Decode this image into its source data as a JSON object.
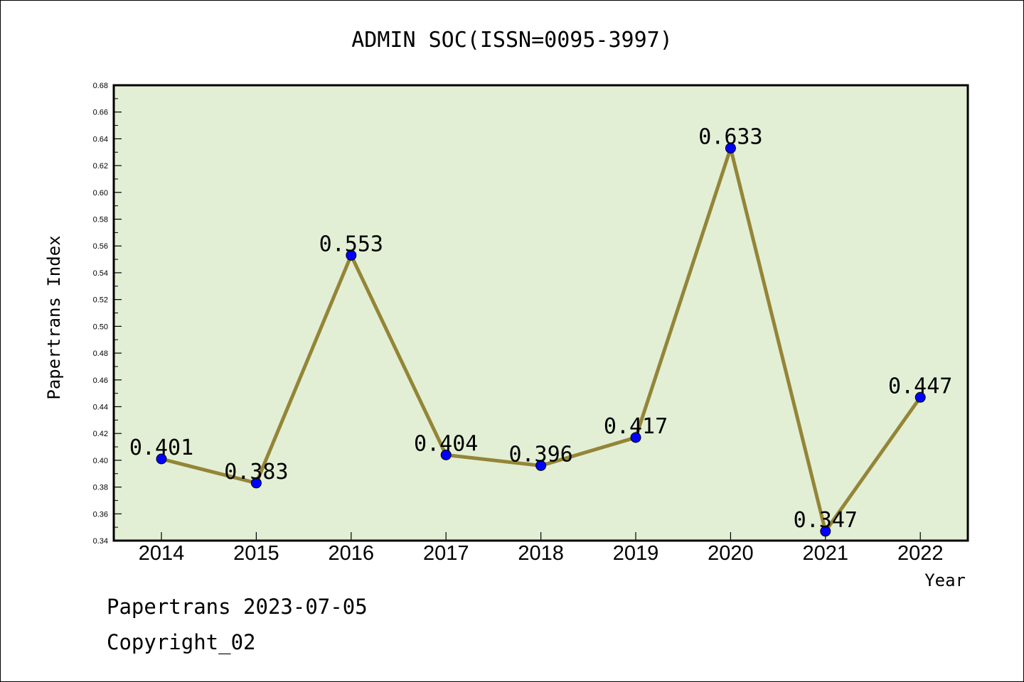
{
  "chart_data": {
    "type": "line",
    "title": "ADMIN SOC(ISSN=0095-3997)",
    "xlabel": "Year",
    "ylabel": "Papertrans Index",
    "categories": [
      "2014",
      "2015",
      "2016",
      "2017",
      "2018",
      "2019",
      "2020",
      "2021",
      "2022"
    ],
    "values": [
      0.401,
      0.383,
      0.553,
      0.404,
      0.396,
      0.417,
      0.633,
      0.347,
      0.447
    ],
    "data_labels": [
      "0.401",
      "0.383",
      "0.553",
      "0.404",
      "0.396",
      "0.417",
      "0.633",
      "0.347",
      "0.447"
    ],
    "ylim": [
      0.34,
      0.68
    ],
    "yticks": [
      "0.34",
      "0.36",
      "0.38",
      "0.40",
      "0.42",
      "0.44",
      "0.46",
      "0.48",
      "0.50",
      "0.52",
      "0.54",
      "0.56",
      "0.58",
      "0.60",
      "0.62",
      "0.64",
      "0.66",
      "0.68"
    ],
    "ytick_values": [
      0.34,
      0.36,
      0.38,
      0.4,
      0.42,
      0.44,
      0.46,
      0.48,
      0.5,
      0.52,
      0.54,
      0.56,
      0.58,
      0.6,
      0.62,
      0.64,
      0.66,
      0.68
    ],
    "grid": false,
    "legend": "none",
    "colors": {
      "plot_background": "#e2efd5",
      "line": "#948537",
      "marker": "#0000ff"
    }
  },
  "footer": {
    "line1": "Papertrans 2023-07-05",
    "line2": "Copyright_02"
  }
}
